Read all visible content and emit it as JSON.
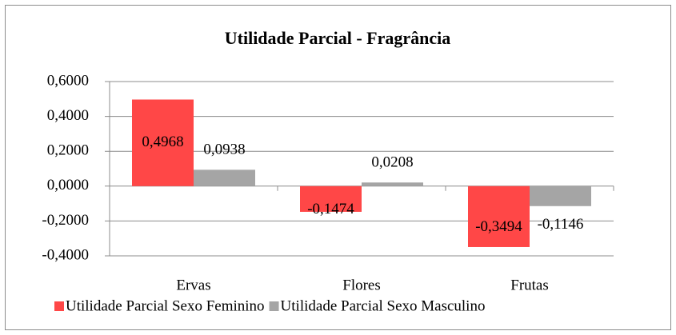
{
  "chart_data": {
    "type": "bar",
    "title": "Utilidade Parcial - Fragrância",
    "categories": [
      "Ervas",
      "Flores",
      "Frutas"
    ],
    "series": [
      {
        "name": "Utilidade Parcial Sexo Feminino",
        "color": "#ff4747",
        "values": [
          0.4968,
          -0.1474,
          -0.3494
        ],
        "value_labels": [
          "0,4968",
          "-0,1474",
          "-0,3494"
        ]
      },
      {
        "name": "Utilidade Parcial Sexo Masculino",
        "color": "#a5a5a5",
        "values": [
          0.0938,
          0.0208,
          -0.1146
        ],
        "value_labels": [
          "0,0938",
          "0,0208",
          "-0,1146"
        ]
      }
    ],
    "ylim": [
      -0.4,
      0.6
    ],
    "yticks": [
      {
        "value": -0.4,
        "label": "-0,4000"
      },
      {
        "value": -0.2,
        "label": "-0,2000"
      },
      {
        "value": 0,
        "label": "0,0000"
      },
      {
        "value": 0.2,
        "label": "0,2000"
      },
      {
        "value": 0.4,
        "label": "0,4000"
      },
      {
        "value": 0.6,
        "label": "0,6000"
      }
    ],
    "grid": true,
    "legend": "bottom"
  }
}
